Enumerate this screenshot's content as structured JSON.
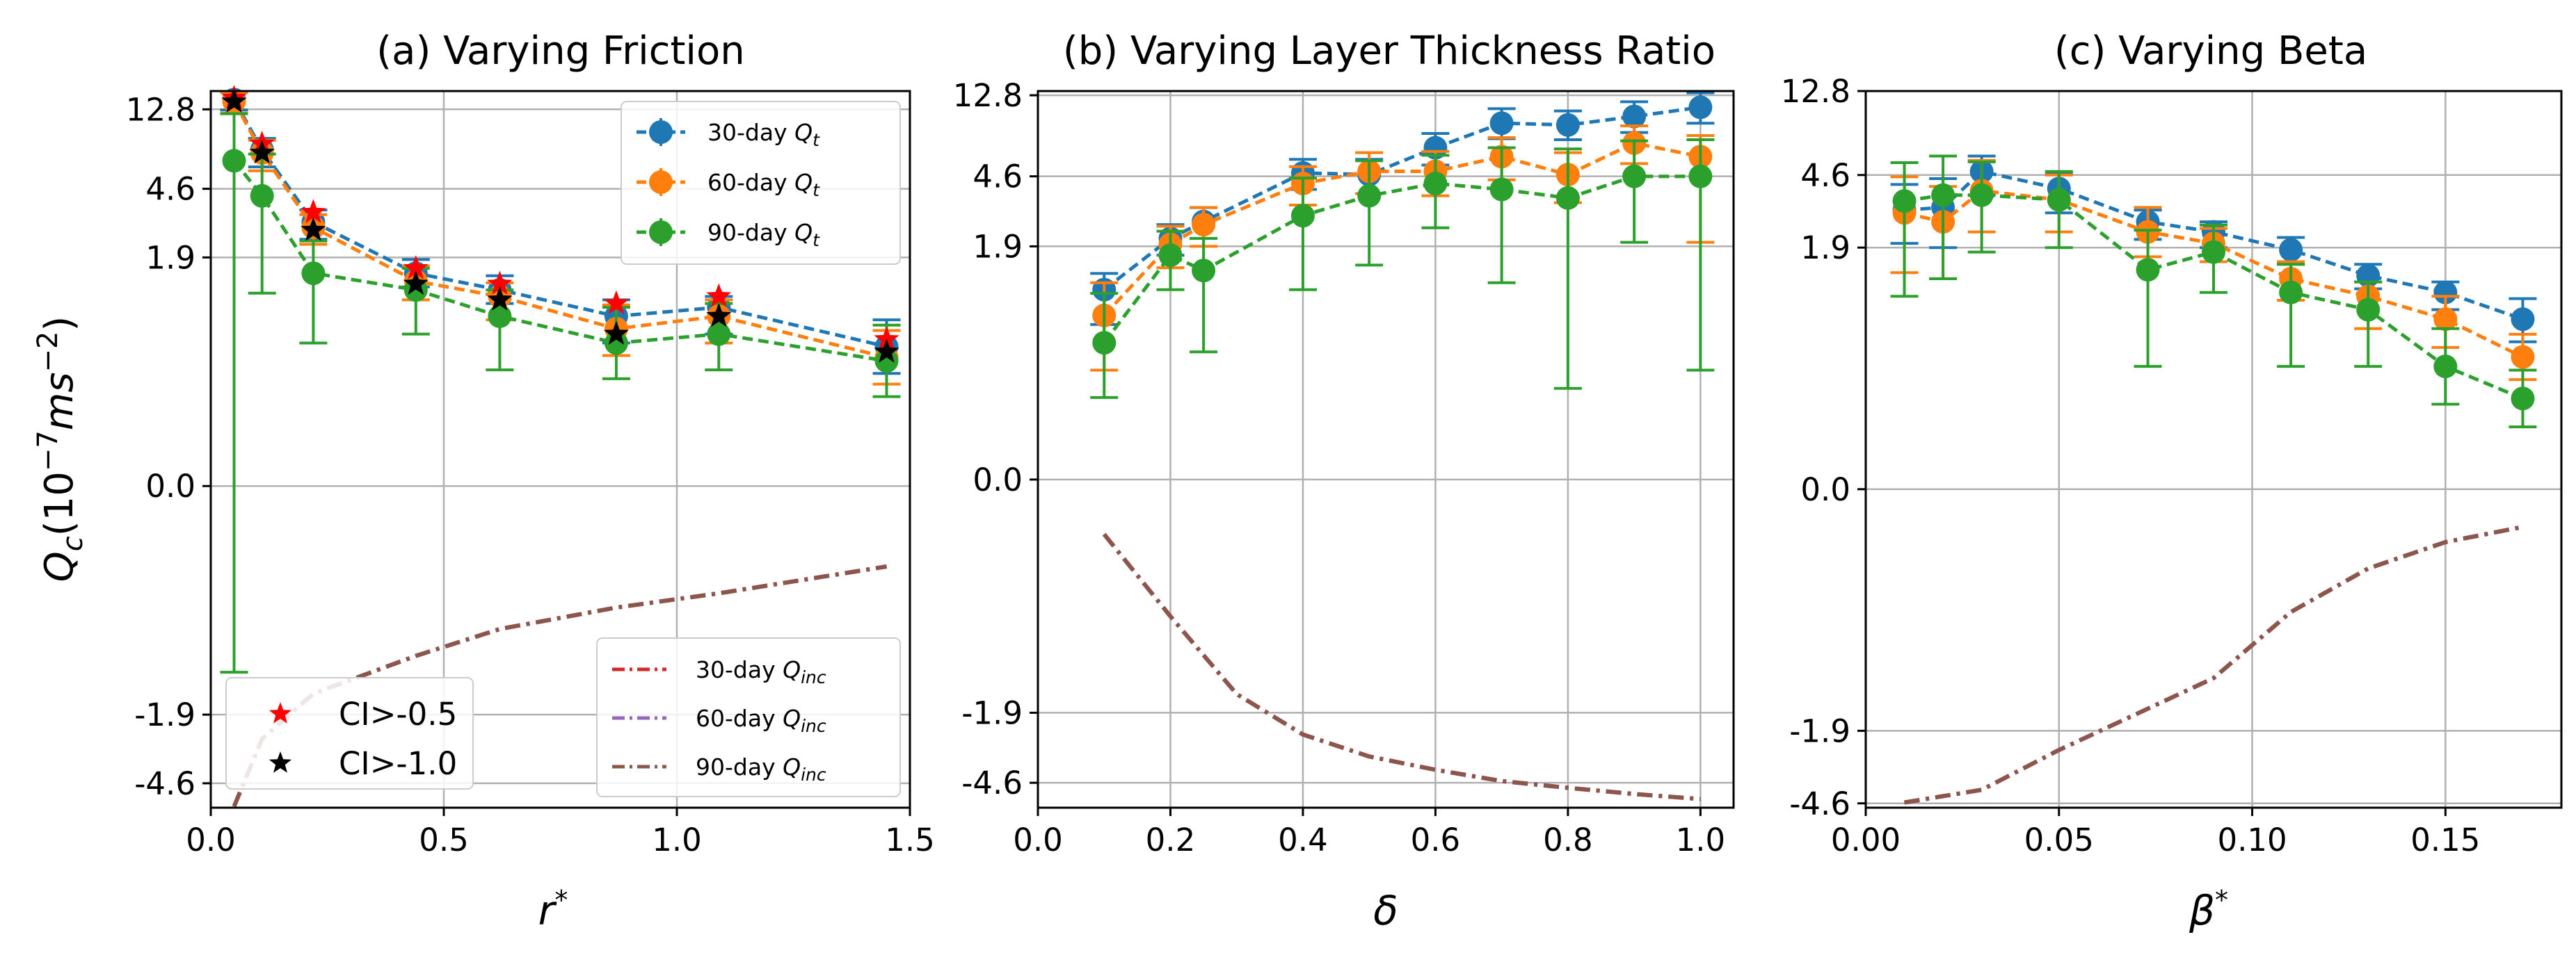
{
  "figure": {
    "ylabel_main": "Q",
    "ylabel_sub": "c",
    "ylabel_tail": "(10",
    "ylabel_exp1": "−7",
    "ylabel_unit": "ms",
    "ylabel_exp2": "−2",
    "ylabel_close": ")"
  },
  "colors": {
    "blue": "#1f77b4",
    "orange": "#ff7f0e",
    "green": "#2ca02c",
    "red": "#d62728",
    "purple": "#9467bd",
    "brown": "#8c564b"
  },
  "legend_labels": {
    "qt_30": "30-day ",
    "qt_60": "60-day ",
    "qt_90": "90-day ",
    "qt_sym": "Q",
    "qt_sub": "t",
    "qinc_30": "30-day ",
    "qinc_60": "60-day ",
    "qinc_90": "90-day ",
    "qinc_sym": "Q",
    "qinc_sub": "inc",
    "ci_05": "CI>-0.5",
    "ci_10": "CI>-1.0"
  },
  "chart_data": [
    {
      "type": "line",
      "title": "(a) Varying Friction",
      "xlabel": "r*",
      "ylabel": "Q_c (10^-7 ms^-2)",
      "xlim": [
        0.0,
        1.5
      ],
      "ylim": [
        -6.3,
        16.2
      ],
      "xticks": [
        0.0,
        0.5,
        1.0,
        1.5
      ],
      "xtick_labels": [
        "0.0",
        "0.5",
        "1.0",
        "1.5"
      ],
      "yticks": [
        -4.6,
        -1.9,
        0.0,
        1.9,
        4.6,
        12.8
      ],
      "ytick_labels": [
        "-4.6",
        "-1.9",
        "0.0",
        "1.9",
        "4.6",
        "12.8"
      ],
      "grid": true,
      "legend_position": "top-right and bottom-right, CI markers bottom-left",
      "series": [
        {
          "name": "30-day Q_t",
          "color": "blue",
          "style": "errorbar-dashed",
          "x": [
            0.05,
            0.11,
            0.22,
            0.44,
            0.62,
            0.87,
            1.09,
            1.45
          ],
          "values": [
            14.5,
            7.6,
            3.0,
            1.55,
            1.25,
            0.95,
            1.0,
            0.78
          ],
          "err_low": [
            1.8,
            1.5,
            0.6,
            0.25,
            0.2,
            0.15,
            0.15,
            0.15
          ],
          "err_high": [
            1.6,
            1.2,
            0.5,
            0.3,
            0.25,
            0.15,
            0.15,
            0.15
          ]
        },
        {
          "name": "60-day Q_t",
          "color": "orange",
          "style": "errorbar-dashed",
          "x": [
            0.05,
            0.11,
            0.22,
            0.44,
            0.62,
            0.87,
            1.09,
            1.45
          ],
          "values": [
            14.2,
            7.3,
            2.8,
            1.4,
            1.15,
            0.88,
            0.95,
            0.72
          ],
          "err_low": [
            2.0,
            1.5,
            0.55,
            0.3,
            0.22,
            0.15,
            0.15,
            0.15
          ],
          "err_high": [
            1.7,
            1.3,
            0.5,
            0.3,
            0.22,
            0.15,
            0.15,
            0.15
          ]
        },
        {
          "name": "90-day Q_t",
          "color": "green",
          "style": "errorbar-dashed",
          "x": [
            0.05,
            0.11,
            0.22,
            0.44,
            0.62,
            0.87,
            1.09,
            1.45
          ],
          "values": [
            6.6,
            4.2,
            1.55,
            1.25,
            0.95,
            0.8,
            0.85,
            0.7
          ],
          "err_low": [
            7.7,
            3.0,
            0.75,
            0.4,
            0.3,
            0.2,
            0.2,
            0.2
          ],
          "err_high": [
            5.5,
            3.0,
            0.8,
            0.4,
            0.3,
            0.2,
            0.2,
            0.2
          ]
        },
        {
          "name": "30-day Q_inc",
          "color": "red",
          "style": "dashdot",
          "x": [
            0.05,
            0.11,
            0.22,
            0.44,
            0.62,
            0.87,
            1.09,
            1.45
          ],
          "values": [
            -6.2,
            -2.6,
            -1.45,
            -0.95,
            -0.8,
            -0.68,
            -0.6,
            -0.45
          ]
        },
        {
          "name": "60-day Q_inc",
          "color": "purple",
          "style": "dashdot",
          "x": [
            0.05,
            0.11,
            0.22,
            0.44,
            0.62,
            0.87,
            1.09,
            1.45
          ],
          "values": [
            -6.2,
            -2.6,
            -1.45,
            -0.95,
            -0.8,
            -0.68,
            -0.6,
            -0.45
          ]
        },
        {
          "name": "90-day Q_inc",
          "color": "brown",
          "style": "dashdot",
          "x": [
            0.05,
            0.11,
            0.22,
            0.44,
            0.62,
            0.87,
            1.09,
            1.45
          ],
          "values": [
            -6.2,
            -2.6,
            -1.45,
            -0.95,
            -0.8,
            -0.68,
            -0.6,
            -0.45
          ]
        },
        {
          "name": "CI>-0.5",
          "color": "red",
          "style": "star",
          "x": [
            0.05,
            0.11,
            0.22,
            0.44,
            0.62,
            0.87,
            1.09,
            1.45
          ],
          "values": [
            14.8,
            8.2,
            3.4,
            1.65,
            1.35,
            1.05,
            1.15,
            0.82
          ]
        },
        {
          "name": "CI>-1.0",
          "color": "black",
          "style": "star",
          "x": [
            0.05,
            0.11,
            0.22,
            0.44,
            0.62,
            0.87,
            1.09,
            1.45
          ],
          "values": [
            14.1,
            7.3,
            2.7,
            1.35,
            1.1,
            0.85,
            0.95,
            0.75
          ]
        }
      ]
    },
    {
      "type": "line",
      "title": "(b) Varying Layer Thickness Ratio",
      "xlabel": "δ",
      "ylabel": "",
      "xlim": [
        0.0,
        1.05
      ],
      "ylim": [
        -6.3,
        13.5
      ],
      "xticks": [
        0.0,
        0.2,
        0.4,
        0.6,
        0.8,
        1.0
      ],
      "xtick_labels": [
        "0.0",
        "0.2",
        "0.4",
        "0.6",
        "0.8",
        "1.0"
      ],
      "yticks": [
        -4.6,
        -1.9,
        0.0,
        1.9,
        4.6,
        12.8
      ],
      "ytick_labels": [
        "-4.6",
        "-1.9",
        "0.0",
        "1.9",
        "4.6",
        "12.8"
      ],
      "grid": true,
      "legend_position": "none",
      "series": [
        {
          "name": "30-day Q_t",
          "color": "blue",
          "style": "errorbar-dashed",
          "x": [
            0.1,
            0.2,
            0.25,
            0.4,
            0.5,
            0.6,
            0.7,
            0.8,
            0.9,
            1.0
          ],
          "values": [
            1.1,
            2.1,
            2.6,
            4.8,
            4.7,
            6.6,
            9.0,
            8.8,
            9.8,
            11.0
          ],
          "err_low": [
            0.25,
            0.4,
            0.5,
            0.9,
            1.0,
            1.3,
            1.6,
            1.5,
            1.8,
            2.0
          ],
          "err_high": [
            0.25,
            0.4,
            0.5,
            0.9,
            1.0,
            1.3,
            1.8,
            1.7,
            2.0,
            2.2
          ]
        },
        {
          "name": "60-day Q_t",
          "color": "orange",
          "style": "errorbar-dashed",
          "x": [
            0.1,
            0.2,
            0.25,
            0.4,
            0.5,
            0.6,
            0.7,
            0.8,
            0.9,
            1.0
          ],
          "values": [
            0.9,
            1.95,
            2.5,
            4.2,
            4.9,
            4.9,
            5.9,
            4.7,
            7.0,
            5.9
          ],
          "err_low": [
            0.3,
            0.5,
            0.6,
            1.0,
            1.2,
            1.3,
            1.5,
            1.4,
            1.6,
            3.9
          ],
          "err_high": [
            0.3,
            0.5,
            0.6,
            1.0,
            1.3,
            1.4,
            1.6,
            1.5,
            1.7,
            1.8
          ]
        },
        {
          "name": "90-day Q_t",
          "color": "green",
          "style": "errorbar-dashed",
          "x": [
            0.1,
            0.2,
            0.25,
            0.4,
            0.5,
            0.6,
            0.7,
            0.8,
            0.9,
            1.0
          ],
          "values": [
            0.75,
            1.7,
            1.4,
            2.8,
            3.6,
            4.2,
            3.9,
            3.5,
            4.6,
            4.6
          ],
          "err_low": [
            0.3,
            0.6,
            0.7,
            1.7,
            2.1,
            1.8,
            2.7,
            3.0,
            2.6,
            4.0
          ],
          "err_high": [
            0.3,
            0.6,
            0.7,
            1.7,
            2.0,
            1.8,
            2.7,
            3.0,
            2.6,
            2.7
          ]
        },
        {
          "name": "30-day Q_inc",
          "color": "red",
          "style": "dashdot",
          "x": [
            0.1,
            0.2,
            0.3,
            0.4,
            0.5,
            0.6,
            0.7,
            0.8,
            0.9,
            1.0
          ],
          "values": [
            -0.3,
            -0.75,
            -1.5,
            -2.5,
            -3.3,
            -3.9,
            -4.5,
            -4.9,
            -5.3,
            -5.65
          ]
        },
        {
          "name": "60-day Q_inc",
          "color": "purple",
          "style": "dashdot",
          "x": [
            0.1,
            0.2,
            0.3,
            0.4,
            0.5,
            0.6,
            0.7,
            0.8,
            0.9,
            1.0
          ],
          "values": [
            -0.3,
            -0.75,
            -1.5,
            -2.5,
            -3.3,
            -3.9,
            -4.5,
            -4.9,
            -5.3,
            -5.65
          ]
        },
        {
          "name": "90-day Q_inc",
          "color": "brown",
          "style": "dashdot",
          "x": [
            0.1,
            0.2,
            0.3,
            0.4,
            0.5,
            0.6,
            0.7,
            0.8,
            0.9,
            1.0
          ],
          "values": [
            -0.3,
            -0.75,
            -1.5,
            -2.5,
            -3.3,
            -3.9,
            -4.5,
            -4.9,
            -5.3,
            -5.65
          ]
        }
      ]
    },
    {
      "type": "line",
      "title": "(c) Varying Beta",
      "xlabel": "β*",
      "ylabel": "",
      "xlim": [
        0.0,
        0.18
      ],
      "ylim": [
        -4.85,
        12.8
      ],
      "xticks": [
        0.0,
        0.05,
        0.1,
        0.15
      ],
      "xtick_labels": [
        "0.00",
        "0.05",
        "0.10",
        "0.15"
      ],
      "yticks": [
        -4.6,
        -1.9,
        0.0,
        1.9,
        4.6,
        12.8
      ],
      "ytick_labels": [
        "-4.6",
        "-1.9",
        "0.0",
        "1.9",
        "4.6",
        "12.8"
      ],
      "grid": true,
      "legend_position": "none",
      "series": [
        {
          "name": "30-day Q_t",
          "color": "blue",
          "style": "errorbar-dashed",
          "x": [
            0.01,
            0.02,
            0.03,
            0.05,
            0.073,
            0.09,
            0.11,
            0.13,
            0.15,
            0.17
          ],
          "values": [
            3.0,
            3.1,
            4.8,
            3.9,
            2.6,
            2.3,
            1.85,
            1.35,
            1.1,
            0.9
          ],
          "err_low": [
            1.0,
            1.2,
            1.2,
            1.0,
            0.5,
            0.4,
            0.3,
            0.2,
            0.15,
            0.12
          ],
          "err_high": [
            1.1,
            1.3,
            1.0,
            0.8,
            0.4,
            0.3,
            0.3,
            0.2,
            0.15,
            0.12
          ]
        },
        {
          "name": "60-day Q_t",
          "color": "orange",
          "style": "errorbar-dashed",
          "x": [
            0.01,
            0.02,
            0.03,
            0.05,
            0.073,
            0.09,
            0.11,
            0.13,
            0.15,
            0.17
          ],
          "values": [
            2.9,
            2.6,
            3.8,
            3.4,
            2.3,
            2.0,
            1.3,
            1.05,
            0.9,
            0.7
          ],
          "err_low": [
            1.5,
            1.3,
            1.5,
            1.1,
            0.6,
            0.4,
            0.3,
            0.2,
            0.15,
            0.12
          ],
          "err_high": [
            1.6,
            1.4,
            1.7,
            1.2,
            0.8,
            0.4,
            0.3,
            0.2,
            0.15,
            0.12
          ]
        },
        {
          "name": "90-day Q_t",
          "color": "green",
          "style": "errorbar-dashed",
          "x": [
            0.01,
            0.02,
            0.03,
            0.05,
            0.073,
            0.09,
            0.11,
            0.13,
            0.15,
            0.17
          ],
          "values": [
            3.35,
            3.6,
            3.6,
            3.4,
            1.45,
            1.8,
            1.1,
            0.95,
            0.65,
            0.48
          ],
          "err_low": [
            2.3,
            2.3,
            1.8,
            1.5,
            0.8,
            0.7,
            0.45,
            0.3,
            0.2,
            0.15
          ],
          "err_high": [
            2.0,
            2.2,
            1.8,
            1.4,
            0.9,
            0.7,
            0.45,
            0.3,
            0.2,
            0.15
          ]
        },
        {
          "name": "30-day Q_inc",
          "color": "red",
          "style": "dashdot",
          "x": [
            0.01,
            0.03,
            0.05,
            0.07,
            0.09,
            0.11,
            0.13,
            0.15,
            0.17
          ],
          "values": [
            -4.55,
            -3.9,
            -2.4,
            -1.55,
            -1.0,
            -0.65,
            -0.42,
            -0.28,
            -0.2
          ]
        },
        {
          "name": "60-day Q_inc",
          "color": "purple",
          "style": "dashdot",
          "x": [
            0.01,
            0.03,
            0.05,
            0.07,
            0.09,
            0.11,
            0.13,
            0.15,
            0.17
          ],
          "values": [
            -4.55,
            -3.9,
            -2.4,
            -1.55,
            -1.0,
            -0.65,
            -0.42,
            -0.28,
            -0.2
          ]
        },
        {
          "name": "90-day Q_inc",
          "color": "brown",
          "style": "dashdot",
          "x": [
            0.01,
            0.03,
            0.05,
            0.07,
            0.09,
            0.11,
            0.13,
            0.15,
            0.17
          ],
          "values": [
            -4.55,
            -3.9,
            -2.4,
            -1.55,
            -1.0,
            -0.65,
            -0.42,
            -0.28,
            -0.2
          ]
        }
      ]
    }
  ]
}
